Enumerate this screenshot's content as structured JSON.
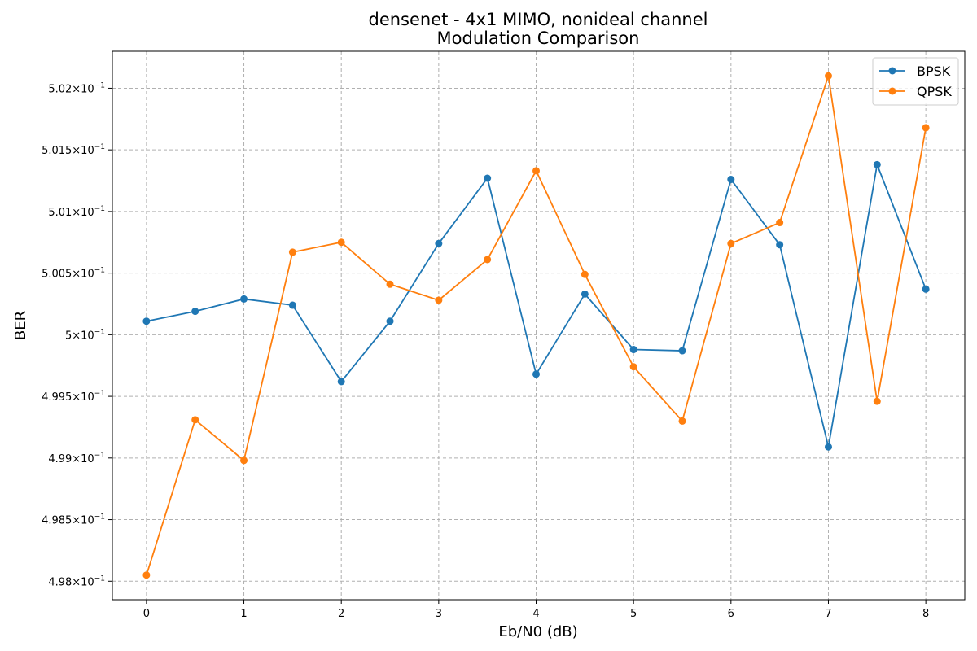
{
  "chart_data": {
    "type": "line",
    "title": "densenet - 4x1 MIMO, nonideal channel",
    "subtitle": "Modulation Comparison",
    "xlabel": "Eb/N0 (dB)",
    "ylabel": "BER",
    "xlim": [
      -0.35,
      8.4
    ],
    "ylim": [
      0.49785,
      0.5023
    ],
    "x_ticks": [
      0,
      1,
      2,
      3,
      4,
      5,
      6,
      7,
      8
    ],
    "x_tick_labels": [
      "0",
      "1",
      "2",
      "3",
      "4",
      "5",
      "6",
      "7",
      "8"
    ],
    "y_ticks": [
      0.498,
      0.4985,
      0.499,
      0.4995,
      0.5,
      0.5005,
      0.501,
      0.5015,
      0.502
    ],
    "y_tick_mantissas": [
      "4.98",
      "4.985",
      "4.99",
      "4.995",
      "5",
      "5.005",
      "5.01",
      "5.015",
      "5.02"
    ],
    "y_tick_base": "×10",
    "y_tick_exponent": "−1",
    "grid": true,
    "legend_position": "top-right",
    "x": [
      0,
      0.5,
      1,
      1.5,
      2,
      2.5,
      3,
      3.5,
      4,
      4.5,
      5,
      5.5,
      6,
      6.5,
      7,
      7.5,
      8
    ],
    "series": [
      {
        "name": "BPSK",
        "color": "#1f77b4",
        "values": [
          0.50011,
          0.50019,
          0.50029,
          0.50024,
          0.49962,
          0.50011,
          0.50074,
          0.50127,
          0.49968,
          0.50033,
          0.49988,
          0.49987,
          0.50126,
          0.50073,
          0.49909,
          0.50138,
          0.50037
        ]
      },
      {
        "name": "QPSK",
        "color": "#ff7f0e",
        "values": [
          0.49805,
          0.49931,
          0.49898,
          0.50067,
          0.50075,
          0.50041,
          0.50028,
          0.50061,
          0.50133,
          0.50049,
          0.49974,
          0.4993,
          0.50074,
          0.50091,
          0.5021,
          0.49946,
          0.50168
        ]
      }
    ]
  }
}
